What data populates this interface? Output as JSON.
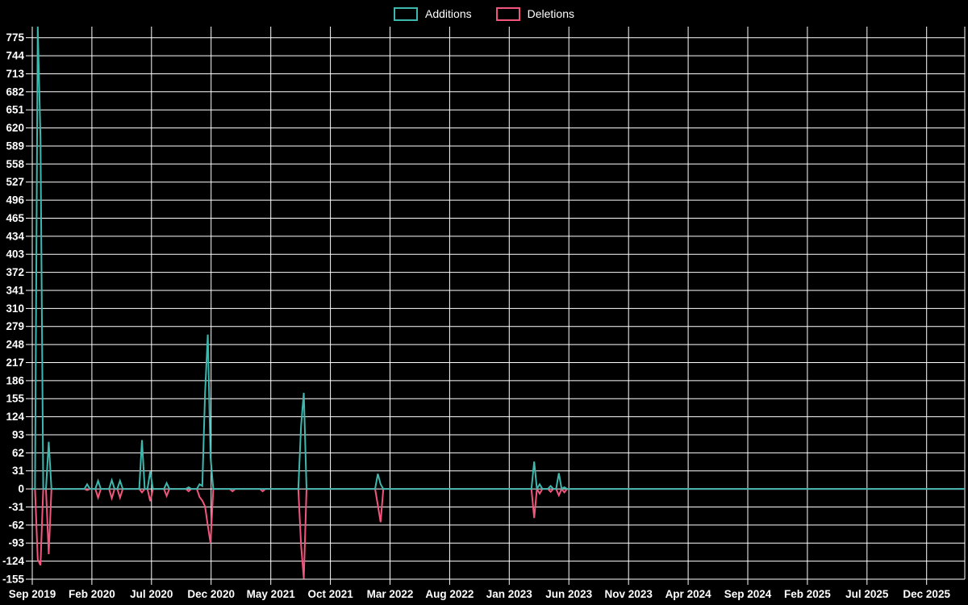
{
  "legend": {
    "additions_label": "Additions",
    "deletions_label": "Deletions"
  },
  "colors": {
    "background": "#000000",
    "grid": "#ffffff",
    "text": "#ffffff",
    "additions": "#3db8ae",
    "deletions": "#f2567c"
  },
  "chart_data": {
    "type": "line",
    "title": "",
    "xlabel": "",
    "ylabel": "",
    "grid": true,
    "legend_position": "top-center",
    "legend_entries": [
      "Additions",
      "Deletions"
    ],
    "x_axis": {
      "start_date": "2019-09-01",
      "tick_labels": [
        "Sep 2019",
        "Feb 2020",
        "Jul 2020",
        "Dec 2020",
        "May 2021",
        "Oct 2021",
        "Mar 2022",
        "Aug 2022",
        "Jan 2023",
        "Jun 2023",
        "Nov 2023",
        "Apr 2024",
        "Sep 2024",
        "Feb 2025",
        "Jul 2025",
        "Dec 2025"
      ],
      "tick_interval_months": 5,
      "weeks_per_tick": 21.74,
      "domain_weeks": 340
    },
    "y_axis": {
      "min": -155,
      "max": 775,
      "tick_step": 31,
      "top_value": 794,
      "tick_labels": [
        "-155",
        "-124",
        "-93",
        "-62",
        "-31",
        "0",
        "31",
        "62",
        "93",
        "124",
        "155",
        "186",
        "217",
        "248",
        "279",
        "310",
        "341",
        "372",
        "403",
        "434",
        "465",
        "496",
        "527",
        "558",
        "589",
        "620",
        "651",
        "682",
        "713",
        "744",
        "775"
      ]
    },
    "series": [
      {
        "name": "Additions",
        "color_key": "additions",
        "baseline": 0
      },
      {
        "name": "Deletions",
        "color_key": "deletions",
        "baseline": 0
      }
    ],
    "weekly_points_note": "weeks not listed have additions=0 and deletions=0; week index counted from 2019-09-01",
    "weekly_points": [
      {
        "week": 2,
        "date": "2019-09-15",
        "additions": 794,
        "deletions": -121
      },
      {
        "week": 3,
        "date": "2019-09-22",
        "additions": 602,
        "deletions": -131
      },
      {
        "week": 6,
        "date": "2019-10-13",
        "additions": 81,
        "deletions": -112
      },
      {
        "week": 20,
        "date": "2020-01-19",
        "additions": 8,
        "deletions": -2
      },
      {
        "week": 24,
        "date": "2020-02-16",
        "additions": 14,
        "deletions": -15
      },
      {
        "week": 29,
        "date": "2020-03-22",
        "additions": 15,
        "deletions": -16
      },
      {
        "week": 32,
        "date": "2020-04-12",
        "additions": 14,
        "deletions": -15
      },
      {
        "week": 40,
        "date": "2020-06-07",
        "additions": 84,
        "deletions": -6
      },
      {
        "week": 43,
        "date": "2020-06-28",
        "additions": 30,
        "deletions": -21
      },
      {
        "week": 49,
        "date": "2020-08-09",
        "additions": 10,
        "deletions": -12
      },
      {
        "week": 57,
        "date": "2020-10-04",
        "additions": 3,
        "deletions": -4
      },
      {
        "week": 61,
        "date": "2020-11-01",
        "additions": 8,
        "deletions": -14
      },
      {
        "week": 62,
        "date": "2020-11-08",
        "additions": 5,
        "deletions": -20
      },
      {
        "week": 63,
        "date": "2020-11-15",
        "additions": 164,
        "deletions": -30
      },
      {
        "week": 64,
        "date": "2020-11-22",
        "additions": 265,
        "deletions": -63
      },
      {
        "week": 65,
        "date": "2020-11-29",
        "additions": 54,
        "deletions": -93
      },
      {
        "week": 73,
        "date": "2021-01-24",
        "additions": 0,
        "deletions": -4
      },
      {
        "week": 84,
        "date": "2021-04-11",
        "additions": 0,
        "deletions": -4
      },
      {
        "week": 98,
        "date": "2021-07-18",
        "additions": 108,
        "deletions": -96
      },
      {
        "week": 99,
        "date": "2021-07-25",
        "additions": 165,
        "deletions": -154
      },
      {
        "week": 126,
        "date": "2022-01-30",
        "additions": 26,
        "deletions": -28
      },
      {
        "week": 127,
        "date": "2022-02-06",
        "additions": 8,
        "deletions": -57
      },
      {
        "week": 183,
        "date": "2023-03-05",
        "additions": 47,
        "deletions": -50
      },
      {
        "week": 185,
        "date": "2023-03-19",
        "additions": 8,
        "deletions": -8
      },
      {
        "week": 189,
        "date": "2023-04-16",
        "additions": 5,
        "deletions": -5
      },
      {
        "week": 192,
        "date": "2023-05-07",
        "additions": 27,
        "deletions": -11
      },
      {
        "week": 194,
        "date": "2023-05-21",
        "additions": 3,
        "deletions": -6
      }
    ]
  }
}
